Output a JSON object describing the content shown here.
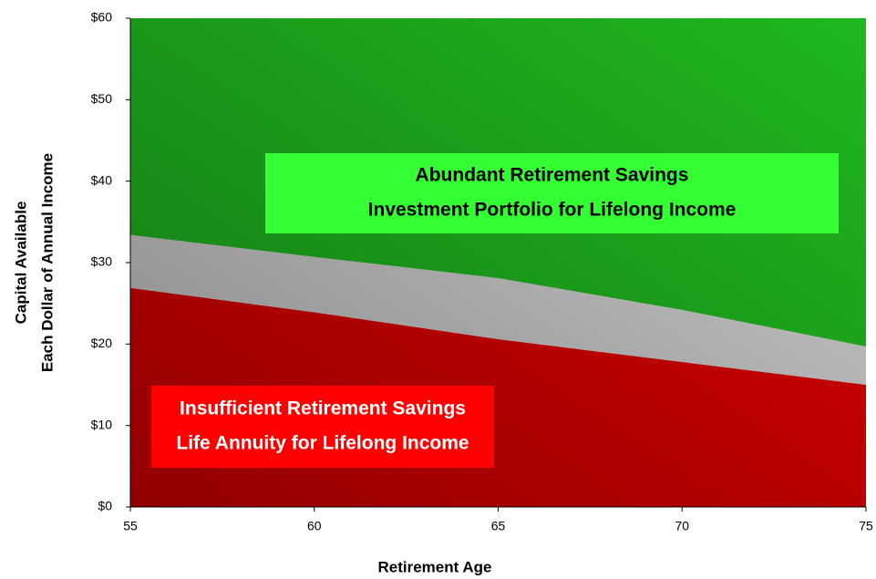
{
  "chart_data": {
    "type": "stacked_area",
    "x": [
      55,
      60,
      65,
      70,
      75
    ],
    "series": [
      {
        "color": "#e00000",
        "values": [
          26.9,
          23.9,
          20.6,
          17.8,
          15.0
        ]
      },
      {
        "color": "#cfcfcf",
        "values": [
          6.5,
          6.8,
          7.5,
          6.4,
          4.7
        ]
      },
      {
        "color": "#1fb81f",
        "values": [
          26.6,
          29.3,
          31.9,
          35.8,
          40.3
        ]
      }
    ],
    "xlim": [
      55,
      75
    ],
    "xticks": [
      55,
      60,
      65,
      70,
      75
    ],
    "ylim": [
      0,
      60
    ],
    "yticks": [
      {
        "value": 0,
        "label": "$0"
      },
      {
        "value": 10,
        "label": "$10"
      },
      {
        "value": 20,
        "label": "$20"
      },
      {
        "value": 30,
        "label": "$30"
      },
      {
        "value": 40,
        "label": "$40"
      },
      {
        "value": 50,
        "label": "$50"
      },
      {
        "value": 60,
        "label": "$60"
      }
    ],
    "x_label": "Retirement Age",
    "y_label": [
      "Capital Available",
      "Each Dollar of Annual Income"
    ],
    "annotations": [
      {
        "lines": [
          "Abundant Retirement Savings",
          "Investment Portfolio for Lifelong Income"
        ],
        "color": "#33ff33"
      },
      {
        "lines": [
          "Insufficient Retirement Savings",
          "Life Annuity for Lifelong Income"
        ],
        "color": "#ff0000"
      }
    ]
  }
}
